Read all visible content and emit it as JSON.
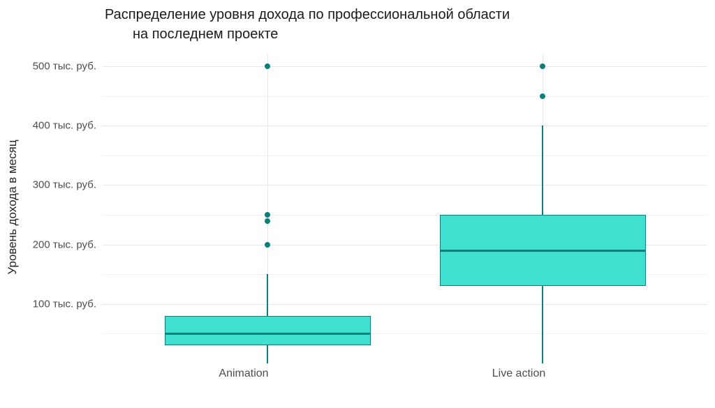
{
  "title": {
    "line1": "Распределение уровня дохода по профессиональной области",
    "line2": "на последнем проекте"
  },
  "y_axis": {
    "title": "Уровень дохода в месяц",
    "tick_labels": [
      "500 тыс. руб.",
      "400 тыс. руб.",
      "300 тыс. руб.",
      "200 тыс. руб.",
      "100 тыс. руб."
    ]
  },
  "x_axis": {
    "categories": [
      "Animation",
      "Live action"
    ]
  },
  "chart_data": {
    "type": "boxplot",
    "title": "Распределение уровня дохода по профессиональной области на последнем проекте",
    "xlabel": "",
    "ylabel": "Уровень дохода в месяц",
    "y_unit": "тыс. руб.",
    "ylim": [
      0,
      525
    ],
    "y_major_ticks": [
      100,
      200,
      300,
      400,
      500
    ],
    "y_minor_gridlines": [
      50,
      150,
      250,
      350,
      450
    ],
    "grid": "horizontal major+minor gridlines, vertical gridline at each category",
    "legend": "none",
    "categories": [
      "Animation",
      "Live action"
    ],
    "series": [
      {
        "name": "Animation",
        "whisker_low": 0,
        "q1": 30,
        "median": 50,
        "q3": 80,
        "whisker_high": 150,
        "outliers": [
          200,
          240,
          250,
          500
        ]
      },
      {
        "name": "Live action",
        "whisker_low": 0,
        "q1": 130,
        "median": 190,
        "q3": 250,
        "whisker_high": 400,
        "outliers": [
          450,
          500
        ]
      }
    ],
    "colors": {
      "box_fill": "#40E0D0",
      "box_line": "#0C7E7C",
      "gridline_major": "#E8E8E8",
      "gridline_minor": "#F2F2F2",
      "tick_text": "#4D4D4D",
      "axis_title_text": "#262626",
      "title_text": "#1A1A1A",
      "background": "#FFFFFF"
    }
  }
}
